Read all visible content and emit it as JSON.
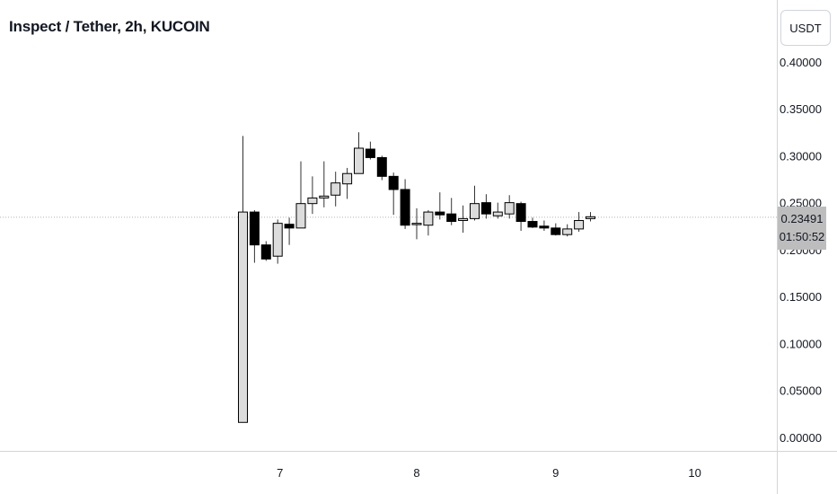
{
  "header": {
    "title": "Inspect / Tether, 2h, KUCOIN"
  },
  "currency_button": {
    "label": "USDT"
  },
  "last_price": {
    "value": "0.23491",
    "countdown": "01:50:52"
  },
  "colors": {
    "up_fill": "#dcdcdc",
    "down_fill": "#000000",
    "wick": "#333333",
    "grid_line": "#d1d4dc",
    "price_tag": "#bdbdbd"
  },
  "chart_data": {
    "type": "candlestick",
    "title": "Inspect / Tether, 2h, KUCOIN",
    "interval": "2h",
    "ylim": [
      -0.01,
      0.42
    ],
    "y_ticks": [
      "0.40000",
      "0.35000",
      "0.30000",
      "0.25000",
      "0.20000",
      "0.15000",
      "0.10000",
      "0.05000",
      "0.00000"
    ],
    "x_ticks": [
      "7",
      "8",
      "9",
      "10"
    ],
    "x_tick_index": [
      3.2,
      15.0,
      27.0,
      39.0
    ],
    "candles": [
      {
        "o": 0.016,
        "h": 0.321,
        "l": 0.016,
        "c": 0.24
      },
      {
        "o": 0.24,
        "h": 0.242,
        "l": 0.186,
        "c": 0.205
      },
      {
        "o": 0.205,
        "h": 0.209,
        "l": 0.188,
        "c": 0.19
      },
      {
        "o": 0.193,
        "h": 0.232,
        "l": 0.185,
        "c": 0.228
      },
      {
        "o": 0.227,
        "h": 0.234,
        "l": 0.205,
        "c": 0.223
      },
      {
        "o": 0.223,
        "h": 0.294,
        "l": 0.223,
        "c": 0.249
      },
      {
        "o": 0.249,
        "h": 0.278,
        "l": 0.238,
        "c": 0.255
      },
      {
        "o": 0.255,
        "h": 0.294,
        "l": 0.245,
        "c": 0.257
      },
      {
        "o": 0.258,
        "h": 0.283,
        "l": 0.246,
        "c": 0.271
      },
      {
        "o": 0.27,
        "h": 0.287,
        "l": 0.254,
        "c": 0.281
      },
      {
        "o": 0.281,
        "h": 0.325,
        "l": 0.281,
        "c": 0.308
      },
      {
        "o": 0.307,
        "h": 0.315,
        "l": 0.296,
        "c": 0.298
      },
      {
        "o": 0.298,
        "h": 0.3,
        "l": 0.274,
        "c": 0.278
      },
      {
        "o": 0.278,
        "h": 0.282,
        "l": 0.237,
        "c": 0.264
      },
      {
        "o": 0.264,
        "h": 0.275,
        "l": 0.222,
        "c": 0.226
      },
      {
        "o": 0.228,
        "h": 0.244,
        "l": 0.211,
        "c": 0.228
      },
      {
        "o": 0.226,
        "h": 0.242,
        "l": 0.215,
        "c": 0.24
      },
      {
        "o": 0.24,
        "h": 0.261,
        "l": 0.232,
        "c": 0.237
      },
      {
        "o": 0.238,
        "h": 0.255,
        "l": 0.226,
        "c": 0.23
      },
      {
        "o": 0.231,
        "h": 0.247,
        "l": 0.218,
        "c": 0.233
      },
      {
        "o": 0.233,
        "h": 0.268,
        "l": 0.231,
        "c": 0.249
      },
      {
        "o": 0.25,
        "h": 0.259,
        "l": 0.233,
        "c": 0.238
      },
      {
        "o": 0.236,
        "h": 0.25,
        "l": 0.233,
        "c": 0.24
      },
      {
        "o": 0.238,
        "h": 0.258,
        "l": 0.233,
        "c": 0.25
      },
      {
        "o": 0.249,
        "h": 0.251,
        "l": 0.22,
        "c": 0.23
      },
      {
        "o": 0.23,
        "h": 0.234,
        "l": 0.223,
        "c": 0.224
      },
      {
        "o": 0.225,
        "h": 0.231,
        "l": 0.22,
        "c": 0.223
      },
      {
        "o": 0.223,
        "h": 0.228,
        "l": 0.215,
        "c": 0.216
      },
      {
        "o": 0.216,
        "h": 0.227,
        "l": 0.214,
        "c": 0.222
      },
      {
        "o": 0.222,
        "h": 0.24,
        "l": 0.219,
        "c": 0.231
      },
      {
        "o": 0.233,
        "h": 0.24,
        "l": 0.23,
        "c": 0.235
      }
    ]
  }
}
